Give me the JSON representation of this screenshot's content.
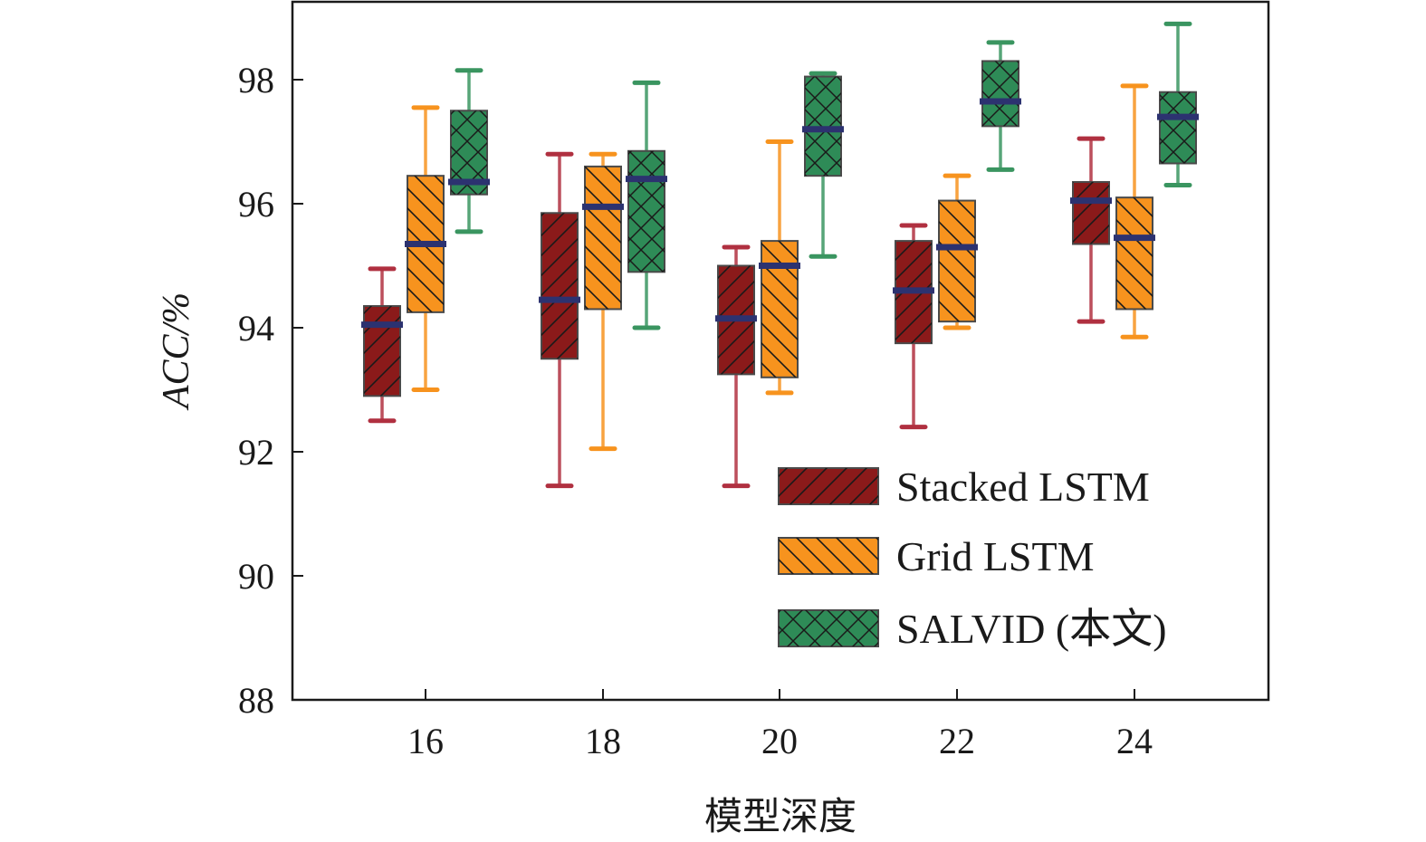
{
  "chart_data": {
    "type": "box",
    "xlabel": "模型深度",
    "ylabel": "ACC/%",
    "ylim": [
      88,
      99.3
    ],
    "yticks": [
      88,
      90,
      92,
      94,
      96,
      98
    ],
    "categories": [
      "16",
      "18",
      "20",
      "22",
      "24"
    ],
    "legend_position": "bottom-right",
    "grid": false,
    "series": [
      {
        "name": "Stacked LSTM",
        "color": "#8b1a1a",
        "whisker_color": "#b03040",
        "hatch": "diagonal-forward",
        "boxes": [
          {
            "min": 92.5,
            "q1": 92.9,
            "median": 94.05,
            "q3": 94.35,
            "max": 94.95
          },
          {
            "min": 91.45,
            "q1": 93.5,
            "median": 94.45,
            "q3": 95.85,
            "max": 96.8
          },
          {
            "min": 91.45,
            "q1": 93.25,
            "median": 94.15,
            "q3": 95.0,
            "max": 95.3
          },
          {
            "min": 92.4,
            "q1": 93.75,
            "median": 94.6,
            "q3": 95.4,
            "max": 95.65
          },
          {
            "min": 94.1,
            "q1": 95.35,
            "median": 96.05,
            "q3": 96.35,
            "max": 97.05
          }
        ]
      },
      {
        "name": "Grid LSTM",
        "color": "#f7931e",
        "whisker_color": "#f7931e",
        "hatch": "diagonal-back",
        "boxes": [
          {
            "min": 93.0,
            "q1": 94.25,
            "median": 95.35,
            "q3": 96.45,
            "max": 97.55
          },
          {
            "min": 92.05,
            "q1": 94.3,
            "median": 95.95,
            "q3": 96.6,
            "max": 96.8
          },
          {
            "min": 92.95,
            "q1": 93.2,
            "median": 95.0,
            "q3": 95.4,
            "max": 97.0
          },
          {
            "min": 94.0,
            "q1": 94.1,
            "median": 95.3,
            "q3": 96.05,
            "max": 96.45
          },
          {
            "min": 93.85,
            "q1": 94.3,
            "median": 95.45,
            "q3": 96.1,
            "max": 97.9
          }
        ]
      },
      {
        "name": "SALVID (本文)",
        "color": "#2e8b57",
        "whisker_color": "#3a9560",
        "hatch": "cross",
        "boxes": [
          {
            "min": 95.55,
            "q1": 96.15,
            "median": 96.35,
            "q3": 97.5,
            "max": 98.15
          },
          {
            "min": 94.0,
            "q1": 94.9,
            "median": 96.4,
            "q3": 96.85,
            "max": 97.95
          },
          {
            "min": 95.15,
            "q1": 96.45,
            "median": 97.2,
            "q3": 98.05,
            "max": 98.1
          },
          {
            "min": 96.55,
            "q1": 97.25,
            "median": 97.65,
            "q3": 98.3,
            "max": 98.6
          },
          {
            "min": 96.3,
            "q1": 96.65,
            "median": 97.4,
            "q3": 97.8,
            "max": 98.9
          }
        ]
      }
    ]
  }
}
